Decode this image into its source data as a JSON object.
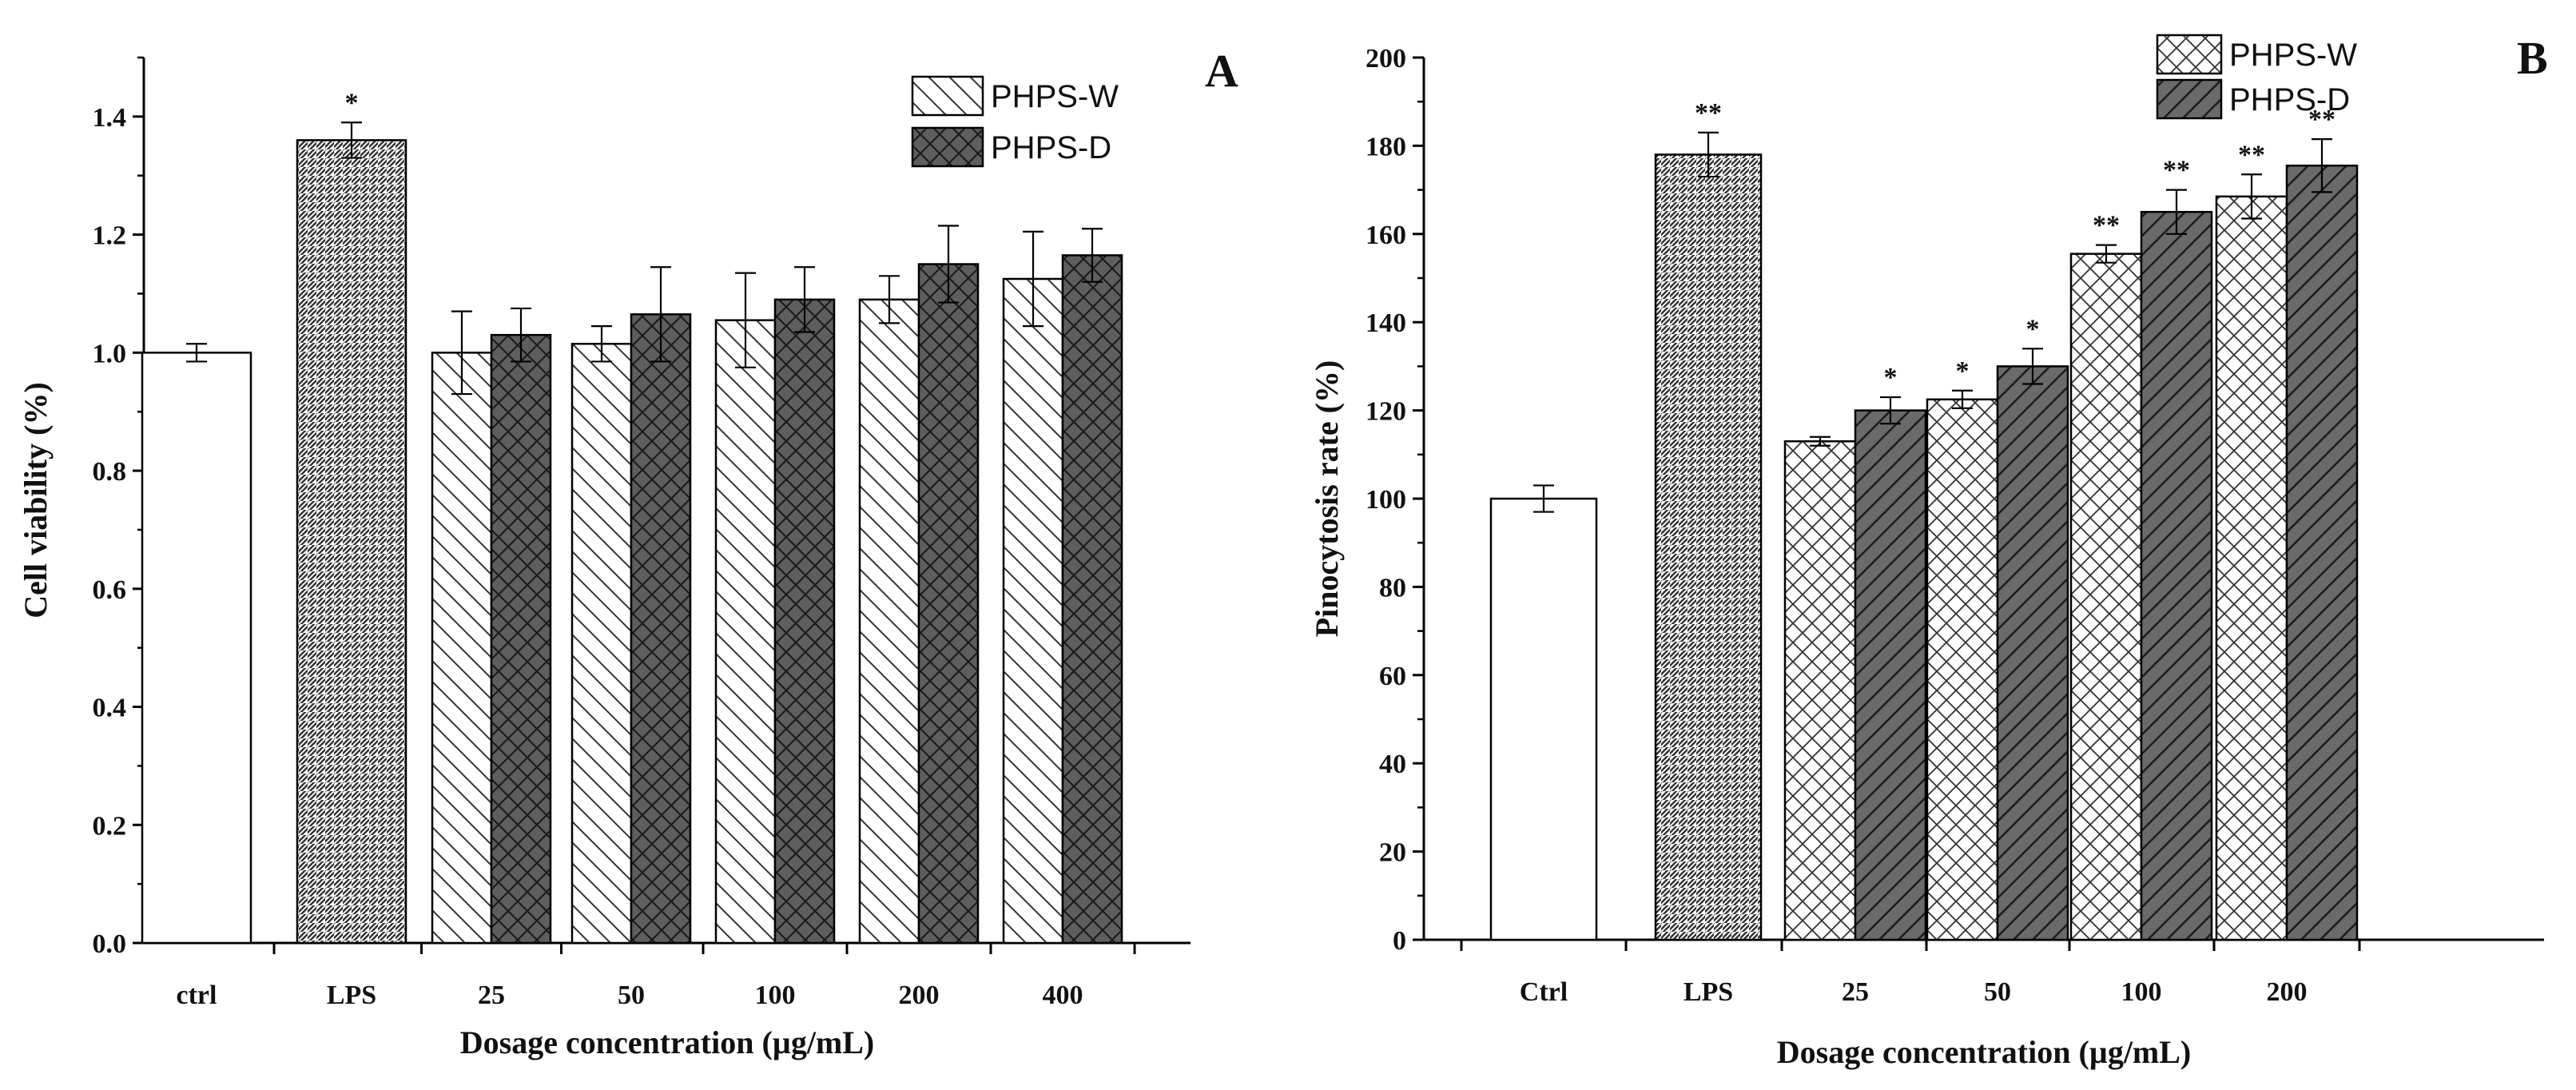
{
  "chart_data": [
    {
      "type": "bar",
      "panel": "A",
      "title": "",
      "xlabel": "Dosage concentration (µg/mL)",
      "ylabel": "Cell viability (%)",
      "ylim": [
        0,
        1.5
      ],
      "yticks": [
        0.0,
        0.2,
        0.4,
        0.6,
        0.8,
        1.0,
        1.2,
        1.4
      ],
      "ytick_labels": [
        "0.0",
        "0.2",
        "0.4",
        "0.6",
        "0.8",
        "1.0",
        "1.2",
        "1.4"
      ],
      "categories": [
        "ctrl",
        "LPS",
        "25",
        "50",
        "100",
        "200",
        "400"
      ],
      "legend": {
        "position": "top-right",
        "entries": [
          "PHPS-W",
          "PHPS-D"
        ]
      },
      "series": [
        {
          "name": "ctrl",
          "pattern": "plain",
          "values": [
            1.0,
            null,
            null,
            null,
            null,
            null,
            null
          ],
          "errors": [
            0.015,
            null,
            null,
            null,
            null,
            null,
            null
          ],
          "labels": [
            "",
            "",
            "",
            "",
            "",
            "",
            ""
          ]
        },
        {
          "name": "LPS",
          "pattern": "fine-diagonal",
          "values": [
            null,
            1.36,
            null,
            null,
            null,
            null,
            null
          ],
          "errors": [
            null,
            0.03,
            null,
            null,
            null,
            null,
            null
          ],
          "labels": [
            "",
            "*",
            "",
            "",
            "",
            "",
            ""
          ]
        },
        {
          "name": "PHPS-W",
          "pattern": "back-diagonal",
          "values": [
            null,
            null,
            1.0,
            1.015,
            1.055,
            1.09,
            1.125
          ],
          "errors": [
            null,
            null,
            0.07,
            0.03,
            0.08,
            0.04,
            0.08
          ],
          "labels": [
            "",
            "",
            "",
            "",
            "",
            "",
            ""
          ]
        },
        {
          "name": "PHPS-D",
          "pattern": "crosshatch-dark",
          "values": [
            null,
            null,
            1.03,
            1.065,
            1.09,
            1.15,
            1.165
          ],
          "errors": [
            null,
            null,
            0.045,
            0.08,
            0.055,
            0.065,
            0.045
          ],
          "labels": [
            "",
            "",
            "",
            "",
            "",
            "",
            ""
          ]
        }
      ]
    },
    {
      "type": "bar",
      "panel": "B",
      "title": "",
      "xlabel": "Dosage concentration (µg/mL)",
      "ylabel": "Pinocytosis rate (%)",
      "ylim": [
        0,
        200
      ],
      "yticks": [
        0,
        20,
        40,
        60,
        80,
        100,
        120,
        140,
        160,
        180,
        200
      ],
      "ytick_labels": [
        "0",
        "20",
        "40",
        "60",
        "80",
        "100",
        "120",
        "140",
        "160",
        "180",
        "200"
      ],
      "categories": [
        "Ctrl",
        "LPS",
        "25",
        "50",
        "100",
        "200"
      ],
      "legend": {
        "position": "top-right",
        "entries": [
          "PHPS-W",
          "PHPS-D"
        ]
      },
      "series": [
        {
          "name": "Ctrl",
          "pattern": "plain",
          "values": [
            100,
            null,
            null,
            null,
            null,
            null
          ],
          "errors": [
            3,
            null,
            null,
            null,
            null,
            null
          ],
          "labels": [
            "",
            "",
            "",
            "",
            "",
            ""
          ]
        },
        {
          "name": "LPS",
          "pattern": "fine-diagonal",
          "values": [
            null,
            178,
            null,
            null,
            null,
            null
          ],
          "errors": [
            null,
            5,
            null,
            null,
            null,
            null
          ],
          "labels": [
            "",
            "**",
            "",
            "",
            "",
            ""
          ]
        },
        {
          "name": "PHPS-W",
          "pattern": "crosshatch-light",
          "values": [
            null,
            null,
            113,
            122.5,
            155.5,
            168.5
          ],
          "errors": [
            null,
            null,
            1,
            2,
            2,
            5
          ],
          "labels": [
            "",
            "",
            "",
            "*",
            "**",
            "**"
          ]
        },
        {
          "name": "PHPS-D",
          "pattern": "diagonal-dark",
          "values": [
            null,
            null,
            120,
            130,
            165,
            175.5
          ],
          "errors": [
            null,
            null,
            3,
            4,
            5,
            6
          ],
          "labels": [
            "",
            "",
            "*",
            "*",
            "**",
            "**"
          ]
        }
      ]
    }
  ]
}
